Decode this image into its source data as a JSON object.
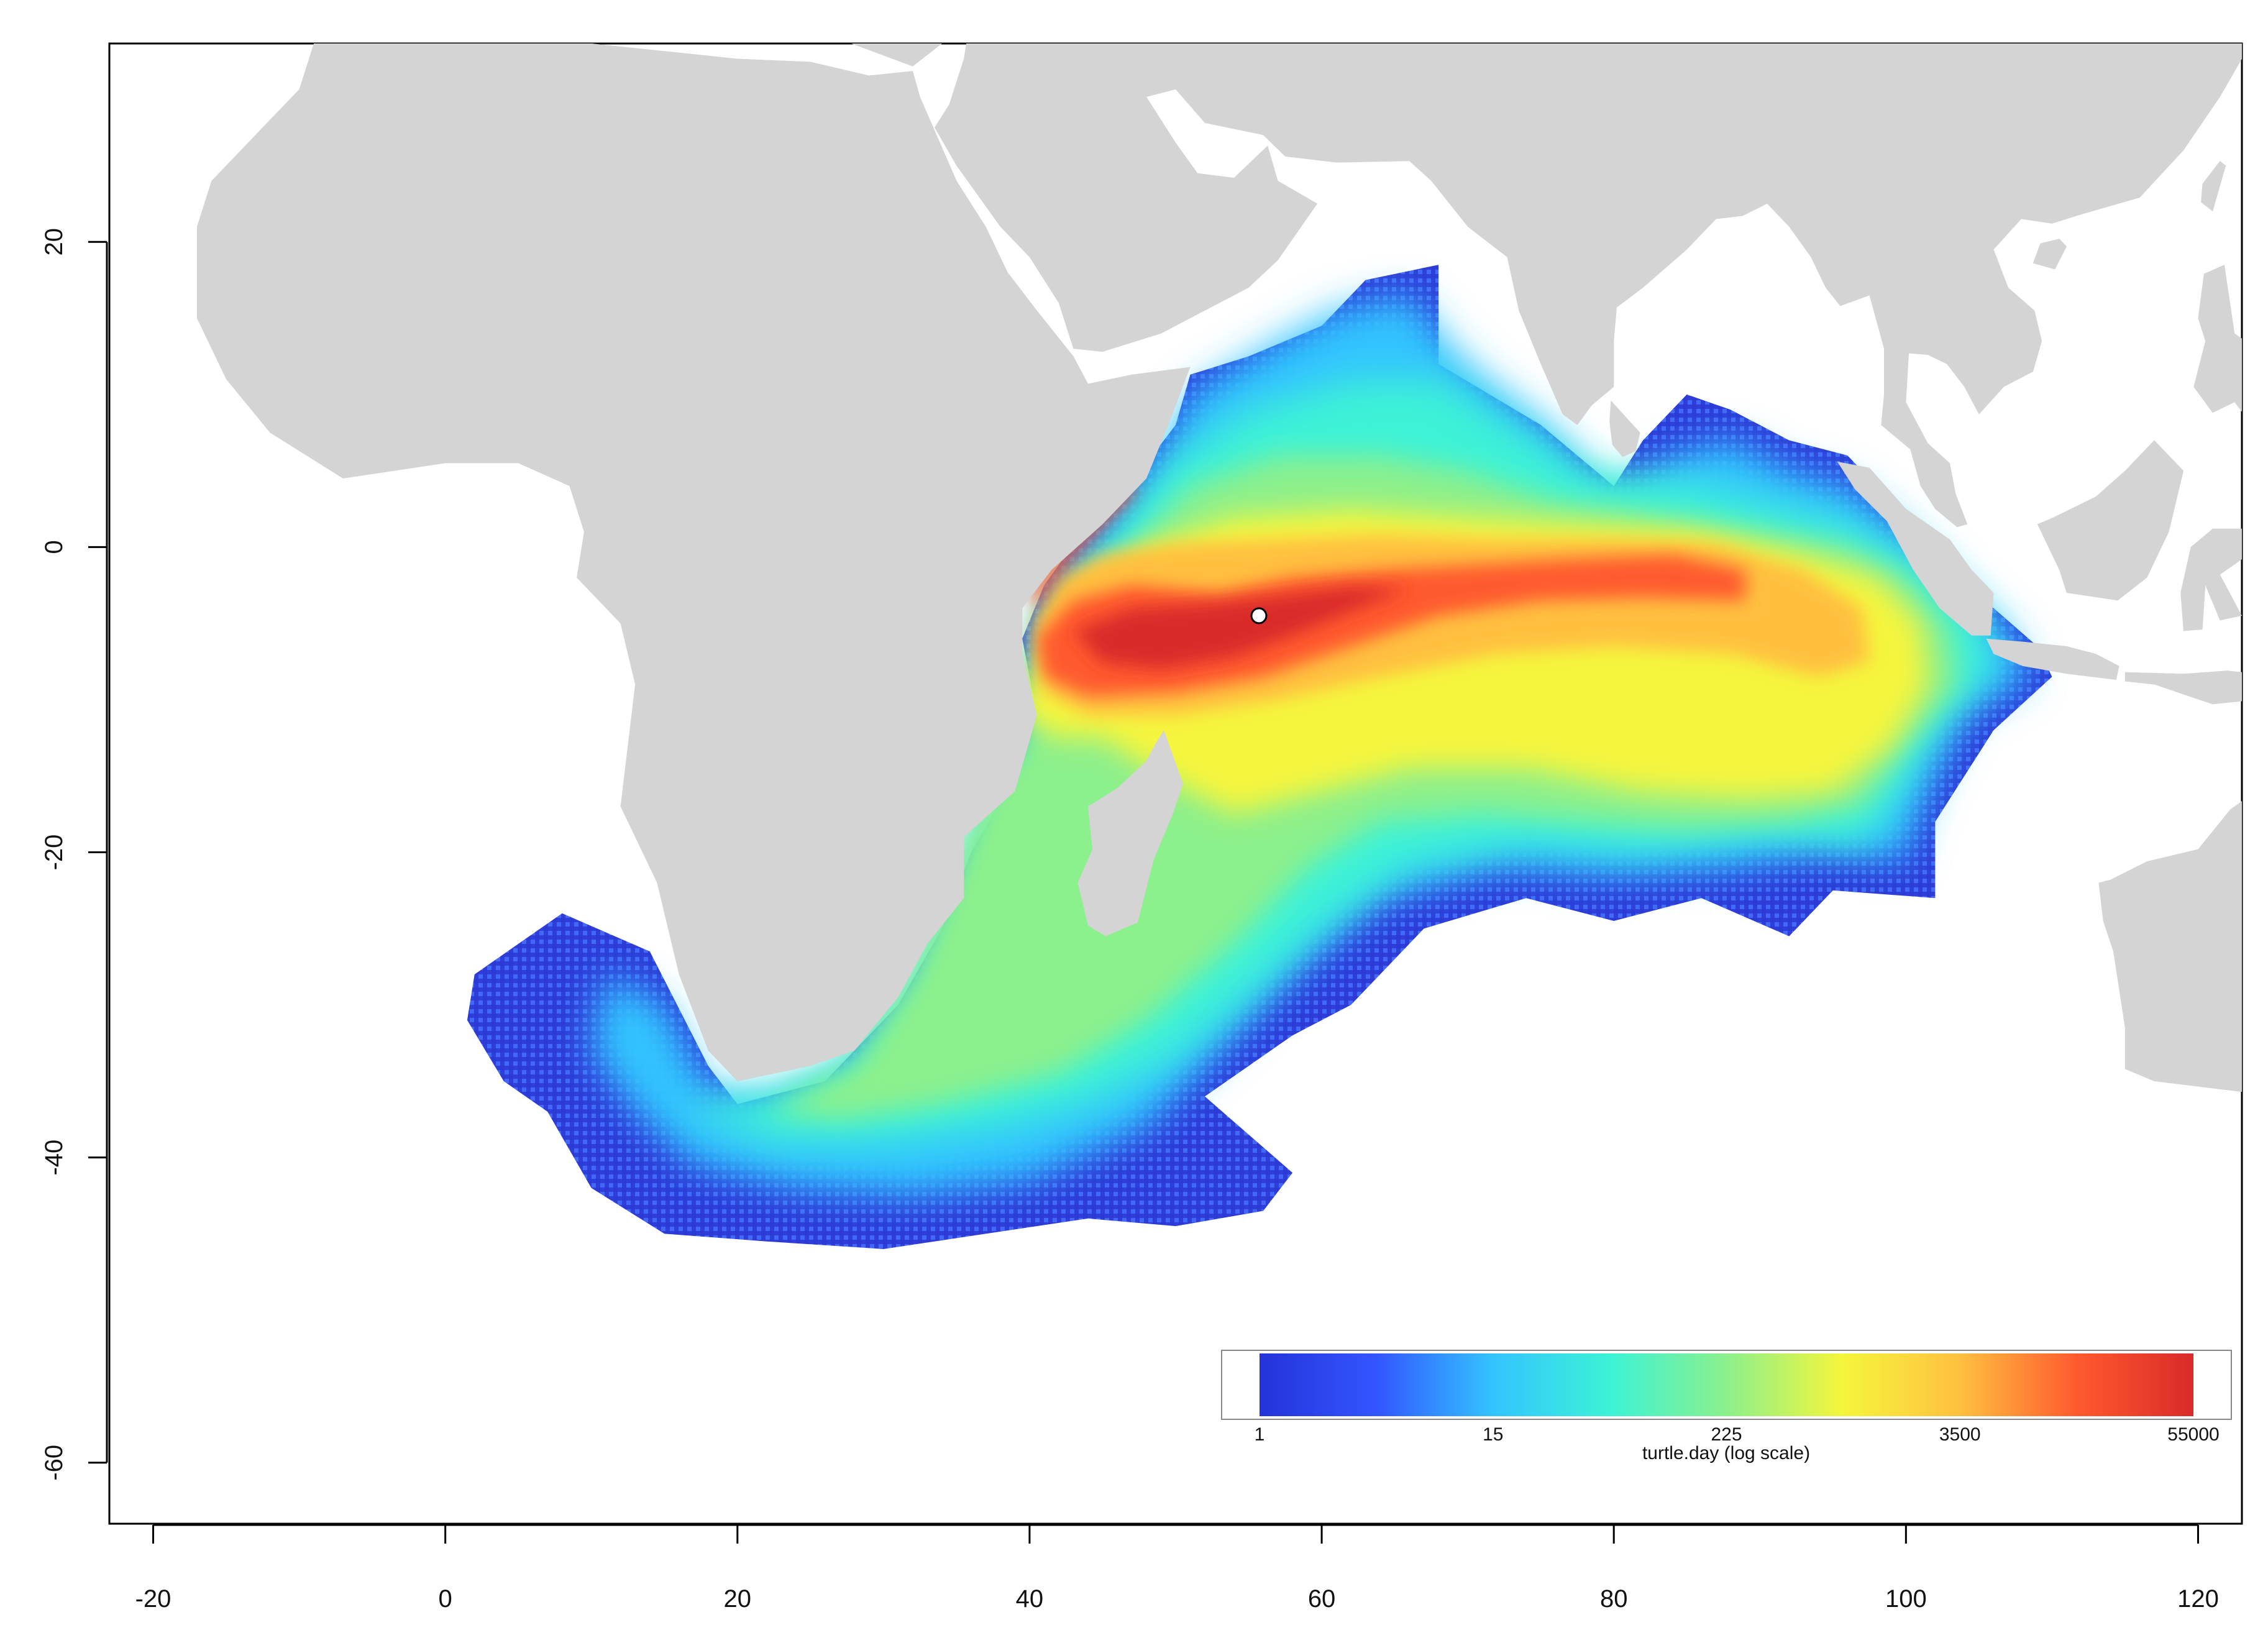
{
  "map": {
    "x_ticks": [
      "-20",
      "0",
      "20",
      "40",
      "60",
      "80",
      "100",
      "120"
    ],
    "x_tick_values": [
      -20,
      0,
      20,
      40,
      60,
      80,
      100,
      120
    ],
    "y_ticks": [
      "20",
      "0",
      "-20",
      "-40",
      "-60"
    ],
    "y_tick_values": [
      20,
      0,
      -20,
      -40,
      -60
    ],
    "xlim": [
      -23,
      123
    ],
    "ylim": [
      -64,
      33
    ],
    "colors": {
      "land": "#d4d4d4",
      "ocean": "#ffffff",
      "scale": [
        "#2433d9",
        "#3355ff",
        "#33c4ff",
        "#3cf2d6",
        "#8cf08c",
        "#f5f53c",
        "#ffc040",
        "#ff5a2e",
        "#d92a2a"
      ]
    },
    "release_site_marker": {
      "lon": 55.7,
      "lat": -4.5,
      "color": "#ffffff"
    }
  },
  "legend": {
    "tick_labels": [
      "1",
      "15",
      "225",
      "3500",
      "55000"
    ],
    "title": "turtle.day (log scale)"
  }
}
